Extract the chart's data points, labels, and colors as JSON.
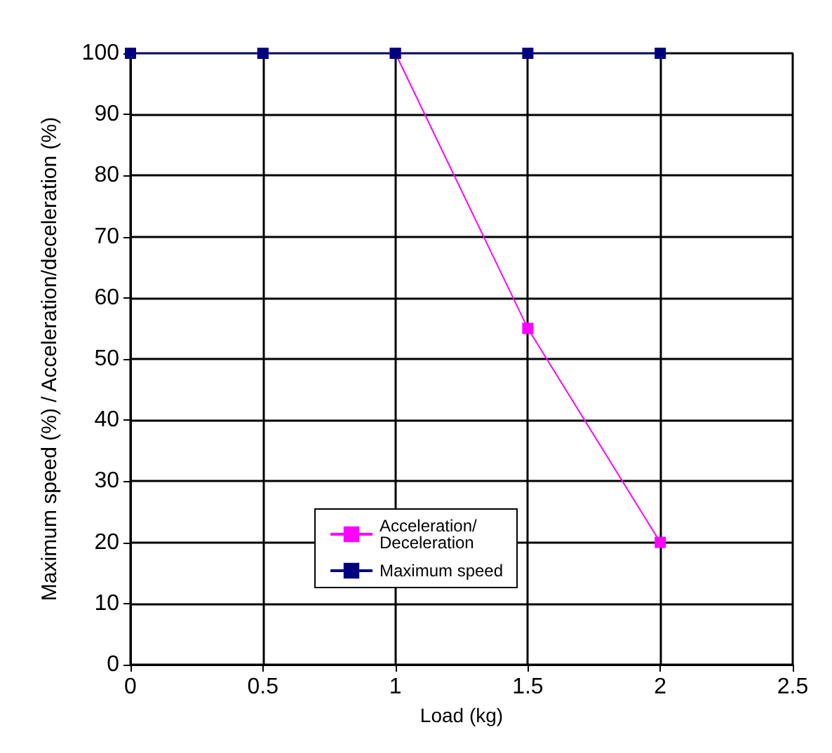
{
  "chart_data": {
    "type": "line",
    "xlabel": "Load (kg)",
    "ylabel": "Maximum speed (%) / Acceleration/deceleration (%)",
    "x": [
      0,
      0.5,
      1,
      1.5,
      2
    ],
    "xlim": [
      0,
      2.5
    ],
    "xticks": [
      0,
      0.5,
      1,
      1.5,
      2,
      2.5
    ],
    "ylim": [
      0,
      100
    ],
    "yticks": [
      0,
      10,
      20,
      30,
      40,
      50,
      60,
      70,
      80,
      90,
      100
    ],
    "grid": true,
    "legend": "bottom",
    "marker": "square",
    "series": [
      {
        "name": "Acceleration/Deceleration",
        "color": "#ff00ff",
        "values": [
          100,
          100,
          100,
          55,
          20
        ]
      },
      {
        "name": "Maximum speed",
        "color": "#000080",
        "values": [
          100,
          100,
          100,
          100,
          100
        ]
      }
    ]
  }
}
